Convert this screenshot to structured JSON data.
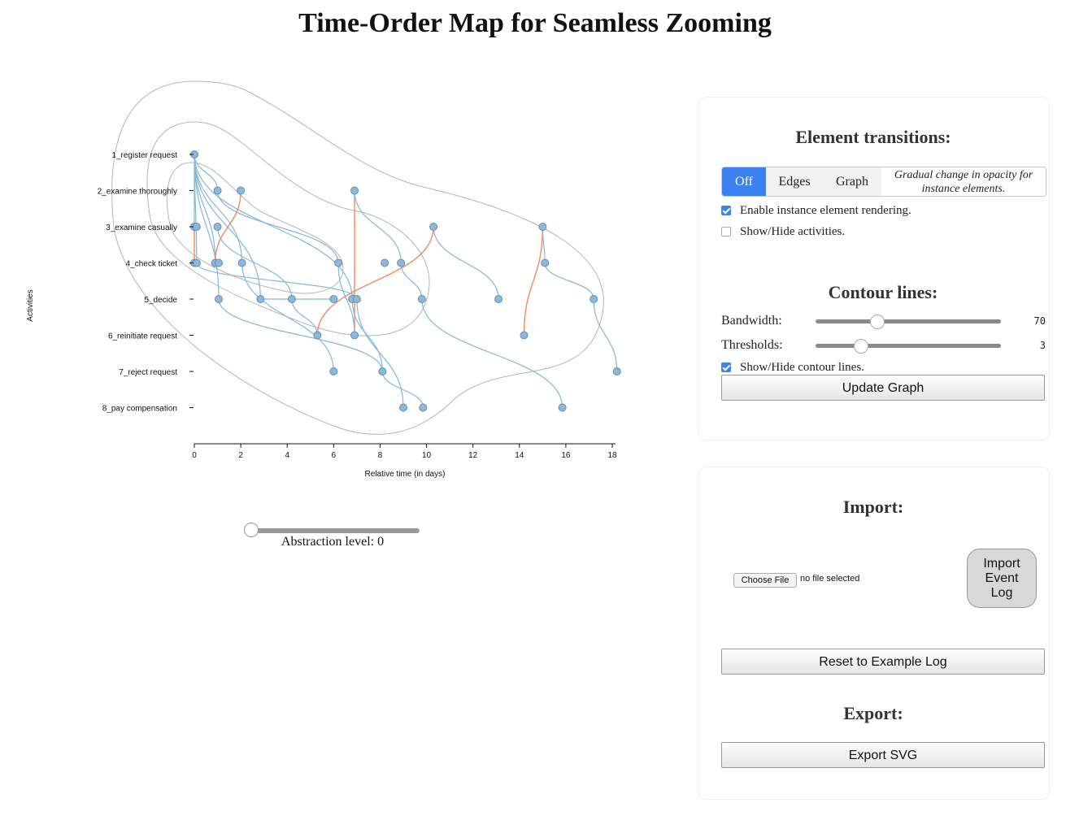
{
  "page": {
    "title": "Time-Order Map for Seamless Zooming"
  },
  "chart_data": {
    "type": "scatter",
    "ylabel": "Activities",
    "xlabel": "Relative time (in days)",
    "xlim": [
      0,
      18
    ],
    "x_ticks": [
      "0",
      "2",
      "4",
      "6",
      "8",
      "10",
      "12",
      "14",
      "16",
      "18"
    ],
    "activities": [
      "1_register request",
      "2_examine thoroughly",
      "3_examine casually",
      "4_check ticket",
      "5_decide",
      "6_reinitiate request",
      "7_reject request",
      "8_pay compensation"
    ],
    "points": [
      {
        "x": 0,
        "a": 1
      },
      {
        "x": 1.0,
        "a": 2
      },
      {
        "x": 2.0,
        "a": 2
      },
      {
        "x": 6.9,
        "a": 2
      },
      {
        "x": 0.0,
        "a": 3
      },
      {
        "x": 0.1,
        "a": 3
      },
      {
        "x": 1.0,
        "a": 3
      },
      {
        "x": 10.3,
        "a": 3
      },
      {
        "x": 15.0,
        "a": 3
      },
      {
        "x": 0.0,
        "a": 4
      },
      {
        "x": 0.1,
        "a": 4
      },
      {
        "x": 0.9,
        "a": 4
      },
      {
        "x": 1.05,
        "a": 4
      },
      {
        "x": 2.05,
        "a": 4
      },
      {
        "x": 6.2,
        "a": 4
      },
      {
        "x": 8.2,
        "a": 4
      },
      {
        "x": 8.9,
        "a": 4
      },
      {
        "x": 15.1,
        "a": 4
      },
      {
        "x": 1.05,
        "a": 5
      },
      {
        "x": 2.85,
        "a": 5
      },
      {
        "x": 4.2,
        "a": 5
      },
      {
        "x": 6.0,
        "a": 5
      },
      {
        "x": 6.8,
        "a": 5
      },
      {
        "x": 7.0,
        "a": 5
      },
      {
        "x": 9.8,
        "a": 5
      },
      {
        "x": 13.1,
        "a": 5
      },
      {
        "x": 17.2,
        "a": 5
      },
      {
        "x": 5.3,
        "a": 6
      },
      {
        "x": 6.9,
        "a": 6
      },
      {
        "x": 14.2,
        "a": 6
      },
      {
        "x": 6.0,
        "a": 7
      },
      {
        "x": 8.1,
        "a": 7
      },
      {
        "x": 18.2,
        "a": 7
      },
      {
        "x": 9.0,
        "a": 8
      },
      {
        "x": 9.85,
        "a": 8
      },
      {
        "x": 15.85,
        "a": 8
      }
    ],
    "edges": [
      {
        "from": [
          0,
          1
        ],
        "to": [
          1.0,
          2
        ],
        "color": "blue"
      },
      {
        "from": [
          0,
          1
        ],
        "to": [
          0.0,
          3
        ],
        "color": "blue"
      },
      {
        "from": [
          0,
          1
        ],
        "to": [
          0.1,
          4
        ],
        "color": "blue"
      },
      {
        "from": [
          0,
          1
        ],
        "to": [
          1.05,
          5
        ],
        "color": "blue"
      },
      {
        "from": [
          0,
          1
        ],
        "to": [
          2.85,
          5
        ],
        "color": "blue"
      },
      {
        "from": [
          0,
          1
        ],
        "to": [
          6.8,
          5
        ],
        "color": "blue"
      },
      {
        "from": [
          0,
          1
        ],
        "to": [
          2.05,
          4
        ],
        "color": "blue"
      },
      {
        "from": [
          0,
          1
        ],
        "to": [
          0.9,
          4
        ],
        "color": "blue"
      },
      {
        "from": [
          0,
          3
        ],
        "to": [
          0,
          4
        ],
        "color": "orange"
      },
      {
        "from": [
          2.0,
          2
        ],
        "to": [
          0.9,
          4
        ],
        "color": "orange"
      },
      {
        "from": [
          6.9,
          2
        ],
        "to": [
          6.9,
          6
        ],
        "color": "orange"
      },
      {
        "from": [
          5.3,
          6
        ],
        "to": [
          10.3,
          3
        ],
        "color": "orange"
      },
      {
        "from": [
          15.0,
          3
        ],
        "to": [
          14.2,
          6
        ],
        "color": "orange"
      },
      {
        "from": [
          1.0,
          3
        ],
        "to": [
          4.2,
          5
        ],
        "color": "blue"
      },
      {
        "from": [
          0.1,
          4
        ],
        "to": [
          7.0,
          5
        ],
        "color": "blue"
      },
      {
        "from": [
          2.05,
          4
        ],
        "to": [
          6.0,
          7
        ],
        "color": "blue"
      },
      {
        "from": [
          1.05,
          5
        ],
        "to": [
          8.1,
          7
        ],
        "color": "blue"
      },
      {
        "from": [
          2.85,
          5
        ],
        "to": [
          6.0,
          5
        ],
        "color": "blue"
      },
      {
        "from": [
          1.0,
          2
        ],
        "to": [
          6.2,
          4
        ],
        "color": "blue"
      },
      {
        "from": [
          6.9,
          2
        ],
        "to": [
          8.9,
          4
        ],
        "color": "blue"
      },
      {
        "from": [
          8.9,
          4
        ],
        "to": [
          9.8,
          5
        ],
        "color": "blue"
      },
      {
        "from": [
          9.8,
          5
        ],
        "to": [
          15.85,
          8
        ],
        "color": "blue"
      },
      {
        "from": [
          10.3,
          3
        ],
        "to": [
          13.1,
          5
        ],
        "color": "blue"
      },
      {
        "from": [
          15.0,
          3
        ],
        "to": [
          15.1,
          4
        ],
        "color": "blue"
      },
      {
        "from": [
          15.1,
          4
        ],
        "to": [
          17.2,
          5
        ],
        "color": "blue"
      },
      {
        "from": [
          17.2,
          5
        ],
        "to": [
          18.2,
          7
        ],
        "color": "blue"
      },
      {
        "from": [
          6.2,
          4
        ],
        "to": [
          6.9,
          6
        ],
        "color": "blue"
      },
      {
        "from": [
          7.0,
          5
        ],
        "to": [
          9.0,
          8
        ],
        "color": "blue"
      },
      {
        "from": [
          8.1,
          7
        ],
        "to": [
          9.85,
          8
        ],
        "color": "blue"
      },
      {
        "from": [
          6.8,
          5
        ],
        "to": [
          8.1,
          7
        ],
        "color": "blue"
      },
      {
        "from": [
          4.2,
          5
        ],
        "to": [
          5.3,
          6
        ],
        "color": "blue"
      }
    ],
    "contour_thresholds": 3
  },
  "abstraction": {
    "label": "Abstraction level: 0",
    "value": 0,
    "max": 10
  },
  "transitions": {
    "title": "Element transitions:",
    "options": [
      "Off",
      "Edges",
      "Graph"
    ],
    "selected": "Off",
    "description": "Gradual change in opacity for instance elements.",
    "enable_label": "Enable instance element rendering.",
    "enable_checked": true,
    "activities_label": "Show/Hide activities.",
    "activities_checked": false
  },
  "contour": {
    "title": "Contour lines:",
    "bandwidth_label": "Bandwidth:",
    "bandwidth_value": "70",
    "bandwidth_fraction": 0.33,
    "thresholds_label": "Thresholds:",
    "thresholds_value": "3",
    "thresholds_fraction": 0.24,
    "show_label": "Show/Hide contour lines.",
    "show_checked": true,
    "update_label": "Update Graph"
  },
  "import": {
    "title": "Import:",
    "choose_label": "Choose File",
    "file_status": "no file selected",
    "import_label": "Import Event Log",
    "reset_label": "Reset to Example Log"
  },
  "export": {
    "title": "Export:",
    "button_label": "Export SVG"
  },
  "colors": {
    "accent": "#3b82f0",
    "node": "#8fb8d6",
    "edge_blue": "#87b6d8",
    "edge_orange": "#f08a5d",
    "contour": "#b5b5b5"
  }
}
